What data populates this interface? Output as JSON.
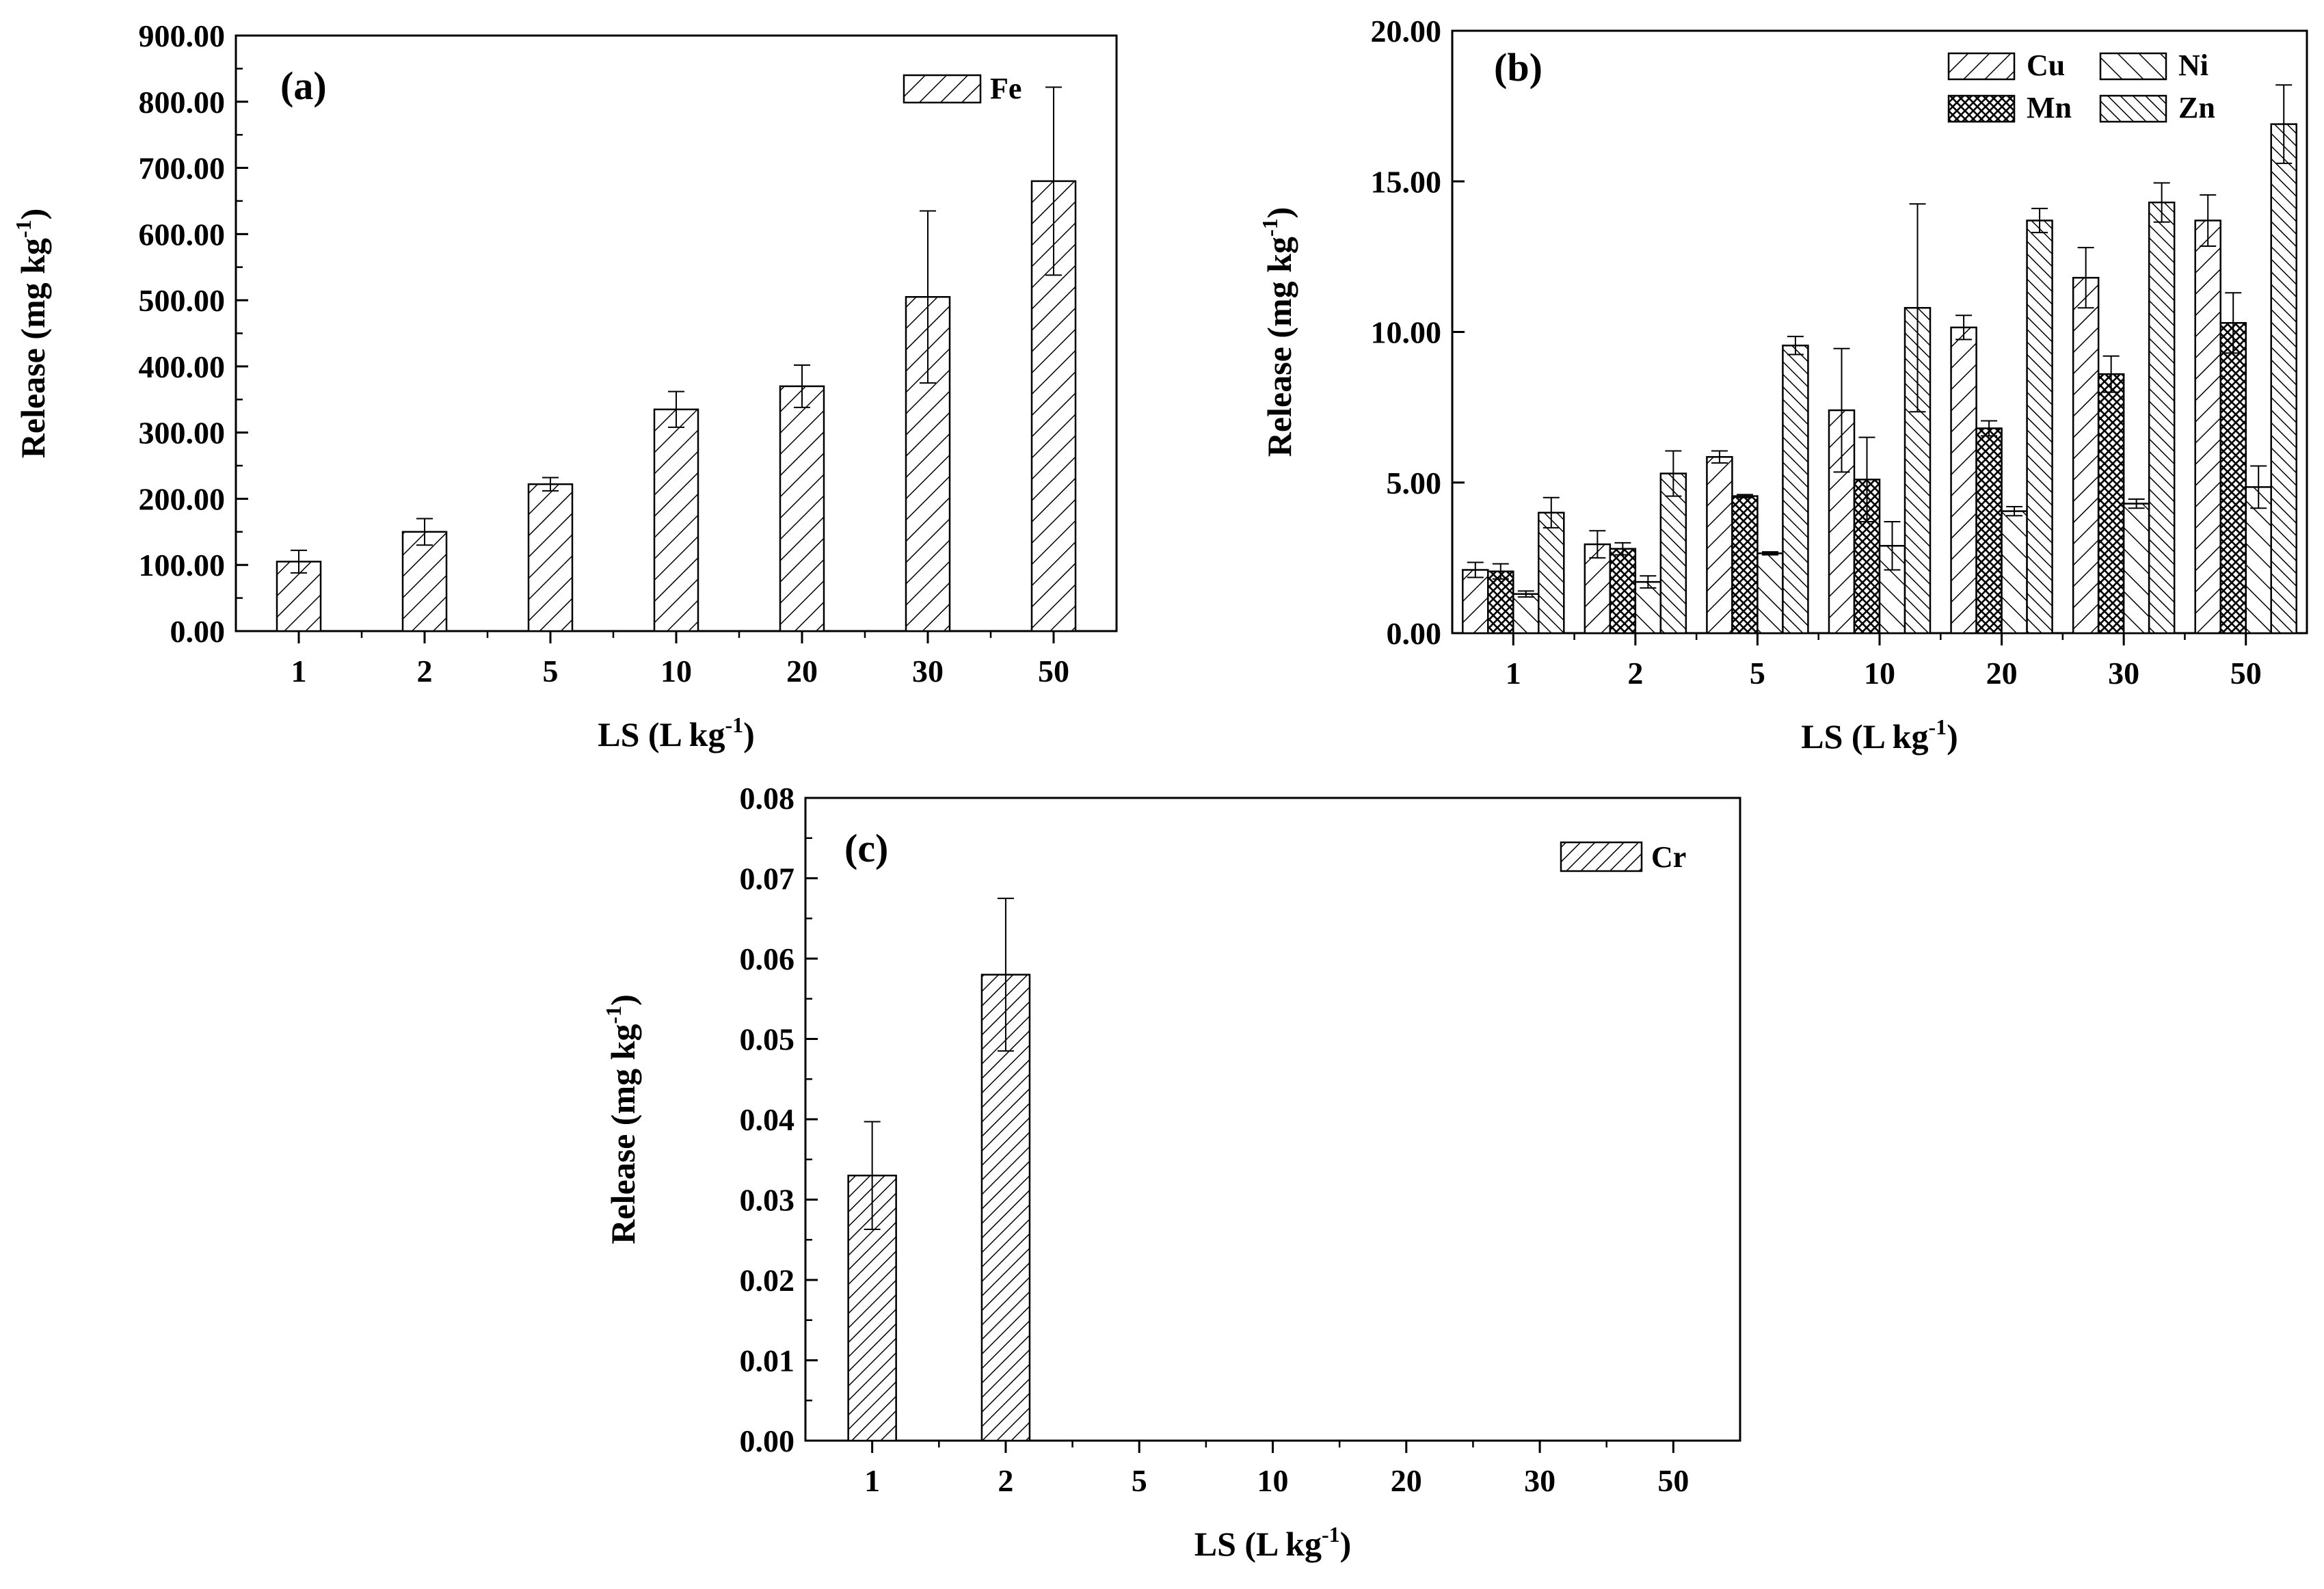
{
  "chart_data": [
    {
      "type": "bar",
      "panel_label": "(a)",
      "categories": [
        "1",
        "2",
        "5",
        "10",
        "20",
        "30",
        "50"
      ],
      "ylim": [
        0,
        900
      ],
      "yticks": [
        "0.00",
        "100.00",
        "200.00",
        "300.00",
        "400.00",
        "500.00",
        "600.00",
        "700.00",
        "800.00",
        "900.00"
      ],
      "ylabel_main": "Release (mg kg",
      "ylabel_sup": "-1",
      "ylabel_tail": ")",
      "xlabel_main": "LS (L kg",
      "xlabel_sup": "-1",
      "xlabel_tail": ")",
      "legend_position": "top-right",
      "series": [
        {
          "name": "Fe",
          "pattern": "hatch-right",
          "values": [
            105,
            150,
            222,
            335,
            370,
            505,
            680
          ],
          "errors": [
            17,
            20,
            10,
            27,
            32,
            130,
            142
          ]
        }
      ]
    },
    {
      "type": "bar",
      "panel_label": "(b)",
      "categories": [
        "1",
        "2",
        "5",
        "10",
        "20",
        "30",
        "50"
      ],
      "ylim": [
        0,
        20
      ],
      "yticks": [
        "0.00",
        "5.00",
        "10.00",
        "15.00",
        "20.00"
      ],
      "ylabel_main": "Release (mg kg",
      "ylabel_sup": "-1",
      "ylabel_tail": ")",
      "xlabel_main": "LS (L kg",
      "xlabel_sup": "-1",
      "xlabel_tail": ")",
      "legend_position": "top-right",
      "series": [
        {
          "name": "Cu",
          "pattern": "hatch-right",
          "values": [
            2.1,
            2.95,
            5.85,
            7.4,
            10.15,
            11.8,
            13.7
          ],
          "errors": [
            0.25,
            0.45,
            0.2,
            2.05,
            0.4,
            1.0,
            0.85
          ]
        },
        {
          "name": "Mn",
          "pattern": "crosshatch",
          "values": [
            2.05,
            2.8,
            4.55,
            5.1,
            6.8,
            8.6,
            10.3
          ],
          "errors": [
            0.25,
            0.2,
            0.05,
            1.4,
            0.25,
            0.6,
            1.0
          ]
        },
        {
          "name": "Ni",
          "pattern": "hatch-left",
          "values": [
            1.3,
            1.7,
            2.65,
            2.9,
            4.05,
            4.3,
            4.85
          ],
          "errors": [
            0.1,
            0.2,
            0.05,
            0.8,
            0.15,
            0.15,
            0.7
          ]
        },
        {
          "name": "Zn",
          "pattern": "hatch-left-dense",
          "values": [
            4.0,
            5.3,
            9.55,
            10.8,
            13.7,
            14.3,
            16.9
          ],
          "errors": [
            0.5,
            0.75,
            0.3,
            3.45,
            0.4,
            0.65,
            1.3
          ]
        }
      ]
    },
    {
      "type": "bar",
      "panel_label": "(c)",
      "categories": [
        "1",
        "2",
        "5",
        "10",
        "20",
        "30",
        "50"
      ],
      "ylim": [
        0,
        0.08
      ],
      "yticks": [
        "0.00",
        "0.01",
        "0.02",
        "0.03",
        "0.04",
        "0.05",
        "0.06",
        "0.07",
        "0.08"
      ],
      "ylabel_main": "Release (mg kg",
      "ylabel_sup": "-1",
      "ylabel_tail": ")",
      "xlabel_main": "LS (L kg",
      "xlabel_sup": "-1",
      "xlabel_tail": ")",
      "legend_position": "top-right",
      "series": [
        {
          "name": "Cr",
          "pattern": "hatch-right-dense",
          "values": [
            0.033,
            0.058,
            0,
            0,
            0,
            0,
            0
          ],
          "errors": [
            0.0067,
            0.0095,
            0,
            0,
            0,
            0,
            0
          ]
        }
      ]
    }
  ]
}
